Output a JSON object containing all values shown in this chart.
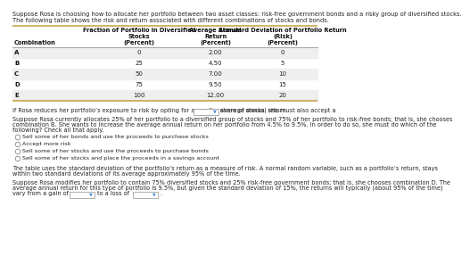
{
  "intro_line1": "Suppose Rosa is choosing how to allocate her portfolio between two asset classes: risk-free government bonds and a risky group of diversified stocks.",
  "intro_line2": "The following table shows the risk and return associated with different combinations of stocks and bonds.",
  "col_headers": [
    "Combination",
    "Fraction of Portfolio in Diversified\nStocks\n(Percent)",
    "Average Annual\nReturn\n(Percent)",
    "Standard Deviation of Portfolio Return\n(Risk)\n(Percent)"
  ],
  "rows": [
    [
      "A",
      "0",
      "2.00",
      "0"
    ],
    [
      "B",
      "25",
      "4.50",
      "5"
    ],
    [
      "C",
      "50",
      "7.00",
      "10"
    ],
    [
      "D",
      "75",
      "9.50",
      "15"
    ],
    [
      "E",
      "100",
      "12.00",
      "20"
    ]
  ],
  "q1_line": "If Rosa reduces her portfolio’s exposure to risk by opting for a smaller share of stocks, she must also accept a",
  "q1_suffix": "average annual return.",
  "q2_line1": "Suppose Rosa currently allocates 25% of her portfolio to a diversified group of stocks and 75% of her portfolio to risk-free bonds; that is, she chooses",
  "q2_line2": "combination B. She wants to increase the average annual return on her portfolio from 4.5% to 9.5%. In order to do so, she must do which of the",
  "q2_line3": "following? Check all that apply.",
  "checkboxes": [
    "Sell some of her bonds and use the proceeds to purchase stocks",
    "Accept more risk",
    "Sell some of her stocks and use the proceeds to purchase bonds",
    "Sell some of her stocks and place the proceeds in a savings account"
  ],
  "q3_line1": "The table uses the standard deviation of the portfolio’s return as a measure of risk. A normal random variable, such as a portfolio’s return, stays",
  "q3_line2": "within two standard deviations of its average approximately 95% of the time.",
  "q4_line1": "Suppose Rosa modifies her portfolio to contain 75% diversified stocks and 25% risk-free government bonds; that is, she chooses combination D. The",
  "q4_line2": "average annual return for this type of portfolio is 9.5%, but given the standard deviation of 15%, the returns will typically (about 95% of the time)",
  "q4_line3": "vary from a gain of",
  "q4_mid": "to a loss of",
  "border_color": "#c8a84b",
  "table_bg_alt": "#efefef",
  "dropdown_border": "#a0a0a0",
  "dropdown_arrow_color": "#4a8fd4",
  "text_dark": "#111111",
  "text_body": "#222222",
  "fs_intro": 4.8,
  "fs_header": 4.8,
  "fs_cell": 5.0,
  "fs_body": 4.7,
  "fs_check": 4.6
}
